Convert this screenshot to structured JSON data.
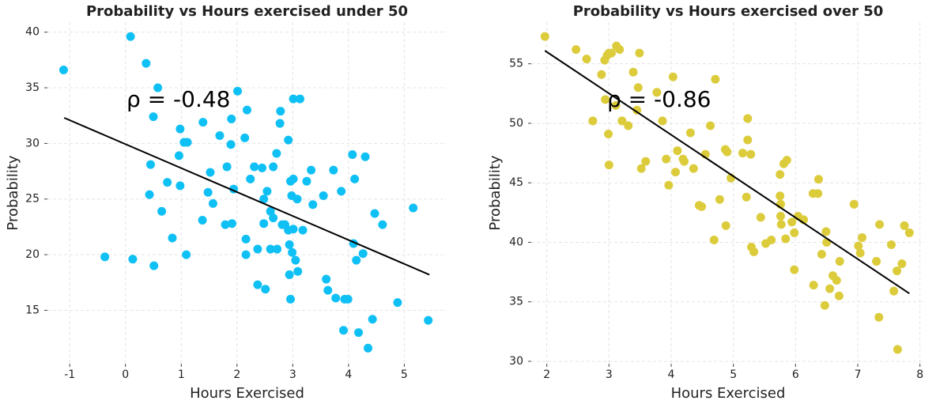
{
  "chart_data": [
    {
      "type": "scatter",
      "title": "Probability vs Hours exercised under 50",
      "xlabel": "Hours Exercised",
      "ylabel": "Probability",
      "annotation": "ρ = -0.48",
      "color": "#0fc0f5",
      "line_color": "#000000",
      "grid": true,
      "xlim": [
        -1.4,
        5.76
      ],
      "ylim": [
        10.2,
        40.9
      ],
      "xticks": [
        -1,
        0,
        1,
        2,
        3,
        4,
        5
      ],
      "yticks": [
        15,
        20,
        25,
        30,
        35,
        40
      ],
      "fit_line": {
        "x": [
          -1.1,
          5.45
        ],
        "y": [
          32.3,
          18.2
        ]
      },
      "x": [
        -1.11,
        0.09,
        0.37,
        0.58,
        0.5,
        0.45,
        0.43,
        0.65,
        0.75,
        0.84,
        0.98,
        0.96,
        0.98,
        1.05,
        1.11,
        1.09,
        -0.37,
        0.13,
        0.51,
        1.39,
        1.48,
        1.52,
        1.57,
        1.38,
        1.69,
        1.82,
        1.79,
        1.89,
        1.9,
        1.91,
        1.94,
        2.01,
        2.14,
        2.18,
        2.24,
        2.31,
        2.16,
        2.16,
        2.37,
        2.48,
        2.45,
        2.48,
        2.37,
        2.51,
        2.54,
        2.6,
        2.65,
        2.65,
        2.71,
        2.77,
        2.78,
        2.6,
        2.72,
        2.81,
        2.86,
        2.92,
        2.96,
        3.01,
        2.98,
        2.92,
        2.94,
        3.01,
        2.99,
        3.05,
        2.94,
        3.09,
        2.96,
        3.01,
        3.13,
        3.08,
        3.18,
        3.25,
        3.33,
        3.36,
        3.55,
        3.6,
        3.63,
        3.73,
        3.77,
        3.87,
        3.91,
        3.93,
        3.99,
        4.07,
        4.11,
        4.09,
        4.14,
        4.18,
        4.26,
        4.3,
        4.35,
        4.43,
        4.47,
        4.61,
        4.88,
        5.16,
        5.43
      ],
      "values": [
        36.6,
        39.6,
        37.2,
        35.0,
        32.4,
        28.1,
        25.4,
        23.9,
        26.5,
        21.5,
        31.3,
        28.9,
        26.2,
        30.1,
        30.1,
        20.0,
        19.8,
        19.6,
        19.0,
        31.9,
        25.6,
        27.4,
        24.6,
        23.1,
        30.7,
        27.9,
        22.7,
        29.9,
        32.2,
        22.8,
        25.9,
        34.7,
        30.5,
        33.0,
        26.8,
        27.9,
        21.4,
        20.0,
        20.5,
        25.0,
        27.8,
        22.8,
        17.3,
        16.9,
        25.7,
        23.9,
        23.3,
        27.9,
        29.1,
        31.8,
        32.9,
        20.5,
        20.5,
        22.7,
        22.7,
        30.3,
        26.6,
        26.8,
        25.3,
        22.2,
        20.9,
        22.3,
        20.2,
        19.5,
        18.2,
        18.5,
        16.0,
        34.0,
        34.0,
        25.0,
        22.2,
        26.6,
        27.6,
        24.5,
        25.3,
        17.8,
        16.8,
        27.6,
        16.1,
        25.7,
        13.2,
        16.0,
        16.0,
        29.0,
        26.8,
        21.0,
        19.5,
        13.0,
        20.1,
        28.8,
        11.6,
        14.2,
        23.7,
        22.7,
        15.7,
        24.2,
        14.1
      ]
    },
    {
      "type": "scatter",
      "title": "Probability vs Hours exercised over 50",
      "xlabel": "Hours Exercised",
      "ylabel": "Probability",
      "annotation": "ρ = -0.86",
      "color": "#dccc3c",
      "line_color": "#000000",
      "grid": true,
      "xlim": [
        1.75,
        8.08
      ],
      "ylim": [
        29.8,
        58.5
      ],
      "xticks": [
        2,
        3,
        4,
        5,
        6,
        7,
        8
      ],
      "yticks": [
        30,
        35,
        40,
        45,
        50,
        55
      ],
      "fit_line": {
        "x": [
          1.97,
          7.83
        ],
        "y": [
          56.1,
          35.7
        ]
      },
      "x": [
        1.97,
        2.47,
        2.64,
        2.74,
        2.88,
        2.93,
        2.97,
        3.0,
        3.04,
        3.12,
        3.17,
        2.94,
        2.99,
        3.0,
        3.11,
        3.21,
        3.31,
        3.39,
        3.47,
        3.49,
        3.45,
        3.52,
        3.59,
        3.77,
        3.86,
        3.92,
        3.96,
        4.03,
        4.1,
        4.07,
        4.19,
        4.21,
        4.31,
        4.36,
        4.45,
        4.49,
        4.55,
        4.63,
        4.71,
        4.69,
        4.78,
        4.87,
        4.9,
        4.88,
        4.96,
        5.15,
        5.23,
        5.23,
        5.28,
        5.21,
        5.29,
        5.33,
        5.44,
        5.52,
        5.61,
        5.75,
        5.75,
        5.76,
        5.76,
        5.77,
        5.81,
        5.86,
        5.84,
        5.94,
        5.98,
        5.98,
        6.04,
        6.13,
        6.28,
        6.29,
        6.37,
        6.36,
        6.42,
        6.49,
        6.5,
        6.47,
        6.55,
        6.6,
        6.66,
        6.7,
        6.71,
        6.94,
        7.01,
        7.07,
        7.04,
        7.3,
        7.35,
        7.34,
        7.54,
        7.58,
        7.63,
        7.71,
        7.64,
        7.75,
        7.83
      ],
      "values": [
        57.3,
        56.2,
        55.4,
        50.2,
        54.1,
        55.3,
        55.7,
        55.9,
        55.9,
        56.5,
        56.2,
        52.0,
        49.1,
        46.5,
        51.5,
        50.2,
        49.8,
        54.3,
        53.0,
        55.9,
        51.1,
        46.2,
        46.8,
        52.6,
        50.2,
        47.0,
        44.8,
        53.9,
        47.7,
        45.9,
        47.0,
        46.8,
        49.2,
        46.2,
        43.1,
        43.0,
        47.4,
        49.8,
        53.7,
        40.2,
        43.6,
        47.8,
        47.6,
        41.4,
        45.4,
        47.5,
        50.4,
        48.6,
        47.4,
        43.8,
        39.6,
        39.2,
        42.1,
        39.9,
        40.2,
        45.7,
        43.9,
        43.2,
        42.2,
        41.5,
        46.6,
        46.9,
        40.3,
        41.7,
        40.8,
        37.7,
        42.2,
        41.9,
        44.1,
        36.4,
        45.3,
        44.1,
        39.0,
        40.9,
        40.0,
        34.7,
        36.1,
        37.2,
        36.8,
        35.5,
        38.4,
        43.2,
        39.7,
        40.4,
        39.1,
        38.4,
        41.5,
        33.7,
        39.8,
        35.9,
        37.6,
        38.2,
        31.0,
        41.4,
        40.8
      ]
    }
  ]
}
